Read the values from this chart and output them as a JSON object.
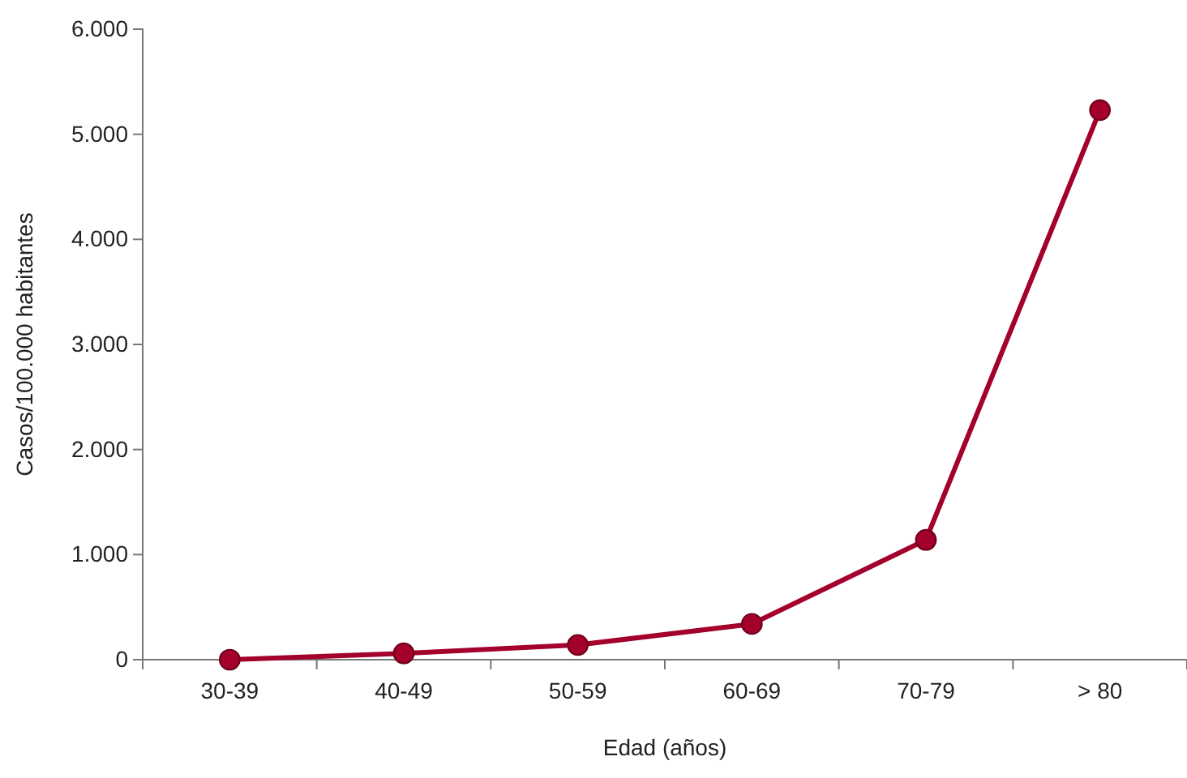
{
  "chart_data": {
    "type": "line",
    "xlabel": "Edad (años)",
    "ylabel": "Casos/100.000 habitantes",
    "categories": [
      "30-39",
      "40-49",
      "50-59",
      "60-69",
      "70-79",
      "> 80"
    ],
    "series": [
      {
        "color": "#a3002c",
        "values": [
          0,
          60,
          140,
          340,
          1140,
          5230
        ]
      }
    ],
    "ylim": [
      0,
      6000
    ],
    "yticks": [
      0,
      {
        "value": 1000,
        "label": "1.000"
      },
      {
        "value": 2000,
        "label": "2.000"
      },
      {
        "value": 3000,
        "label": "3.000"
      },
      {
        "value": 4000,
        "label": "4.000"
      },
      {
        "value": 5000,
        "label": "5.000"
      },
      {
        "value": 6000,
        "label": "6.000"
      }
    ],
    "grid": false,
    "marker": "circle",
    "line_style": "solid"
  }
}
